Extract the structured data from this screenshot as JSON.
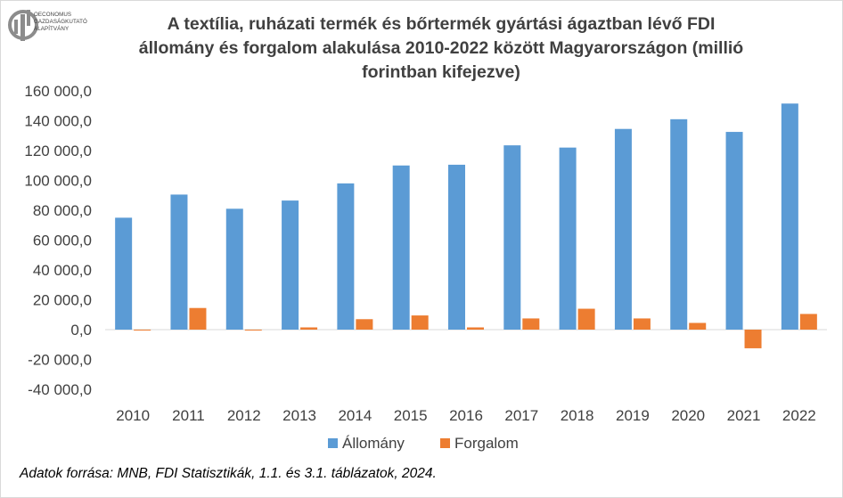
{
  "logo": {
    "lines": [
      "OECONOMUS",
      "GAZDASÁGKUTATÓ",
      "ALAPÍTVÁNY"
    ]
  },
  "title_lines": [
    "A textília, ruházati termék és bőrtermék gyártási ágaztban lévő FDI",
    "állomány és forgalom alakulása 2010-2022 között Magyarországon (millió",
    "forintban kifejezve)"
  ],
  "source": "Adatok forrása: MNB, FDI Statisztikák, 1.1. és 3.1. táblázatok, 2024.",
  "colors": {
    "allomany": "#5b9bd5",
    "forgalom": "#ed7d31",
    "text": "#404040",
    "grid": "#d9d9d9"
  },
  "chart_data": {
    "type": "bar",
    "title": "A textília, ruházati termék és bőrtermék gyártási ágaztban lévő FDI állomány és forgalom alakulása 2010-2022 között Magyarországon (millió forintban kifejezve)",
    "categories": [
      "2010",
      "2011",
      "2012",
      "2013",
      "2014",
      "2015",
      "2016",
      "2017",
      "2018",
      "2019",
      "2020",
      "2021",
      "2022"
    ],
    "series": [
      {
        "name": "Állomány",
        "values": [
          75000,
          90500,
          81000,
          86500,
          98000,
          110000,
          110500,
          123500,
          122000,
          134500,
          141000,
          132500,
          151500
        ]
      },
      {
        "name": "Forgalom",
        "values": [
          -200,
          14500,
          -500,
          1500,
          7000,
          9500,
          1500,
          7500,
          14000,
          7500,
          4500,
          -12500,
          10500
        ]
      }
    ],
    "ylim": [
      -40000,
      160000
    ],
    "ytick_step": 20000,
    "ytick_labels": [
      "-40 000,0",
      "-20 000,0",
      "0,0",
      "20 000,0",
      "40 000,0",
      "60 000,0",
      "80 000,0",
      "100 000,0",
      "120 000,0",
      "140 000,0",
      "160 000,0"
    ],
    "xlabel": "",
    "ylabel": "",
    "grid": false,
    "legend": "bottom"
  }
}
